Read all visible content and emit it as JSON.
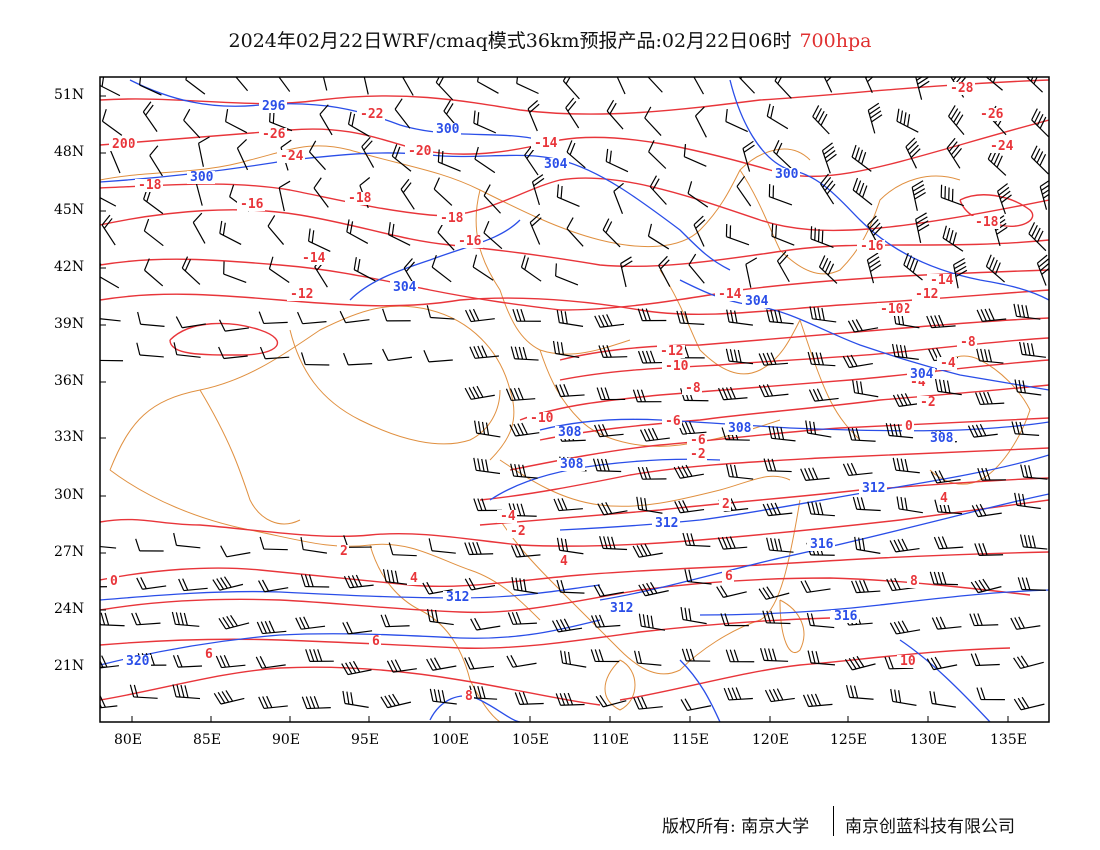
{
  "title": {
    "main": "2024年02月22日WRF/cmaq模式36km预报产品:02月22日06时",
    "level": "700hpa"
  },
  "map": {
    "lat_labels": [
      "51N",
      "48N",
      "45N",
      "42N",
      "39N",
      "36N",
      "33N",
      "30N",
      "27N",
      "24N",
      "21N"
    ],
    "lon_labels": [
      "80E",
      "85E",
      "90E",
      "95E",
      "100E",
      "105E",
      "110E",
      "115E",
      "120E",
      "125E",
      "130E",
      "135E"
    ],
    "colors": {
      "temperature": "#e8353a",
      "geopotential": "#2a4ee8",
      "boundary": "#e09040",
      "wind": "#000000",
      "frame": "#000000"
    },
    "temperature_labels": [
      "-28",
      "-26",
      "-26",
      "-24",
      "-24",
      "-22",
      "-20",
      "-20",
      "-18",
      "-18",
      "-18",
      "-18",
      "-16",
      "-16",
      "-16",
      "-14",
      "-14",
      "-14",
      "-14",
      "-12",
      "-12",
      "-12",
      "-12",
      "-10",
      "-10",
      "-10",
      "-8",
      "-8",
      "-6",
      "-6",
      "-4",
      "-4",
      "-4",
      "-2",
      "-2",
      "-2",
      "0",
      "0",
      "2",
      "2",
      "4",
      "4",
      "4",
      "6",
      "6",
      "6",
      "8",
      "8",
      "10",
      "20"
    ],
    "geopotential_labels": [
      "296",
      "300",
      "300",
      "300",
      "304",
      "304",
      "304",
      "304",
      "308",
      "308",
      "308",
      "308",
      "312",
      "312",
      "312",
      "312",
      "316",
      "316",
      "320"
    ],
    "icons": [
      "wind-barb-icon"
    ]
  },
  "footer": {
    "left": "版权所有: 南京大学",
    "right": "南京创蓝科技有限公司"
  }
}
